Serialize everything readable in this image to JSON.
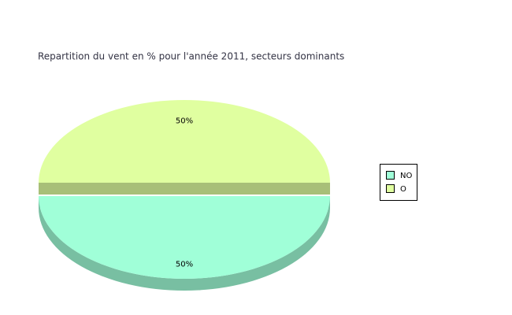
{
  "chart_data": {
    "type": "pie",
    "title": "Repartition du vent en % pour l'année 2011, secteurs dominants",
    "categories": [
      "NO",
      "O"
    ],
    "values": [
      50,
      50
    ],
    "value_labels": [
      "50%",
      "50%"
    ],
    "colors": [
      "#a0ffd8",
      "#e0ffa0"
    ],
    "legend": "right"
  }
}
